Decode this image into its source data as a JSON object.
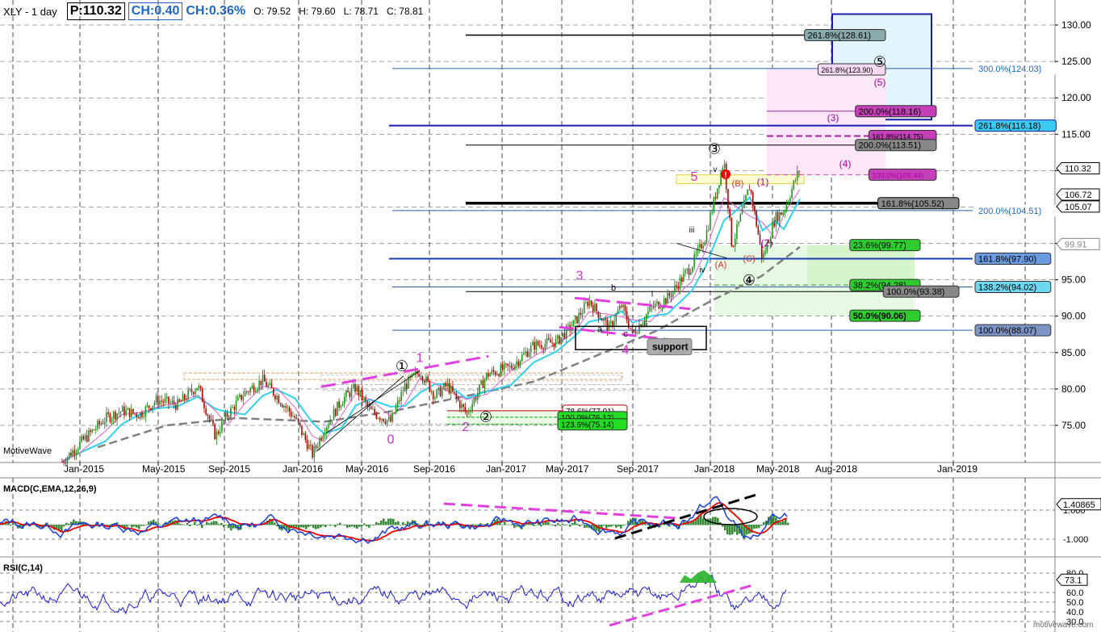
{
  "header": {
    "symbol": "XLY - 1 day",
    "price": "P:110.32",
    "change": "CH:0.40",
    "change_pct": "CH:0.36%",
    "open": "O: 79.52",
    "high": "H: 79.60",
    "low": "L: 78.71",
    "close": "C: 78.81"
  },
  "watermark": "MotiveWave",
  "watermark2": "motivewave.com",
  "chart_data": {
    "type": "candlestick",
    "x_ticks": [
      "Jan-2015",
      "May-2015",
      "Sep-2015",
      "Jan-2016",
      "May-2016",
      "Sep-2016",
      "Jan-2017",
      "May-2017",
      "Sep-2017",
      "Jan-2018",
      "May-2018",
      "Aug-2018",
      "Jan-2019"
    ],
    "y_ticks": [
      75.0,
      80.0,
      85.0,
      90.0,
      95.0,
      100.0,
      105.0,
      110.0,
      115.0,
      120.0,
      125.0,
      130.0
    ],
    "ylim": [
      70.6,
      132
    ],
    "y_tick_labels": [
      "75.00",
      "80.00",
      "85.00",
      "90.00",
      "95.00",
      "100.00",
      "105.00",
      "110.00",
      "115.00",
      "120.00",
      "125.00",
      "130.00"
    ],
    "price_path": [
      [
        "2014-12-01",
        70.0
      ],
      [
        "2015-01-01",
        72.5
      ],
      [
        "2015-02-15",
        76.0
      ],
      [
        "2015-03-15",
        77.0
      ],
      [
        "2015-04-15",
        76.5
      ],
      [
        "2015-05-15",
        78.5
      ],
      [
        "2015-06-20",
        77.8
      ],
      [
        "2015-07-25",
        80.5
      ],
      [
        "2015-08-25",
        73.5
      ],
      [
        "2015-09-15",
        76.5
      ],
      [
        "2015-10-15",
        79.5
      ],
      [
        "2015-11-15",
        81.2
      ],
      [
        "2015-12-10",
        79.0
      ],
      [
        "2016-01-10",
        76.0
      ],
      [
        "2016-02-10",
        71.0
      ],
      [
        "2016-03-01",
        74.5
      ],
      [
        "2016-04-01",
        78.5
      ],
      [
        "2016-04-25",
        80.2
      ],
      [
        "2016-05-20",
        77.0
      ],
      [
        "2016-06-25",
        75.5
      ],
      [
        "2016-07-20",
        80.5
      ],
      [
        "2016-08-15",
        82.5
      ],
      [
        "2016-09-10",
        79.0
      ],
      [
        "2016-10-01",
        80.5
      ],
      [
        "2016-11-04",
        76.6
      ],
      [
        "2016-12-10",
        82.0
      ],
      [
        "2017-01-20",
        83.0
      ],
      [
        "2017-03-01",
        86.0
      ],
      [
        "2017-04-10",
        86.5
      ],
      [
        "2017-05-10",
        89.0
      ],
      [
        "2017-06-05",
        92.2
      ],
      [
        "2017-07-10",
        88.3
      ],
      [
        "2017-08-01",
        91.5
      ],
      [
        "2017-08-20",
        87.5
      ],
      [
        "2017-09-20",
        91.0
      ],
      [
        "2017-10-20",
        92.5
      ],
      [
        "2017-12-01",
        97.0
      ],
      [
        "2017-12-25",
        101.0
      ],
      [
        "2018-01-26",
        111.5
      ],
      [
        "2018-02-09",
        99.5
      ],
      [
        "2018-03-12",
        108.0
      ],
      [
        "2018-04-03",
        97.8
      ],
      [
        "2018-04-25",
        103.5
      ],
      [
        "2018-05-10",
        104.5
      ],
      [
        "2018-06-07",
        110.32
      ]
    ],
    "horizontal_levels": [
      {
        "label": "261.8%(128.61)",
        "value": 128.61
      },
      {
        "label": "261.8%(123.90)",
        "value": 123.9
      },
      {
        "label": "300.0%(124.03)",
        "value": 124.03
      },
      {
        "label": "200.0%(118.16)",
        "value": 118.16
      },
      {
        "label": "261.8%(116.18)",
        "value": 116.18
      },
      {
        "label": "161.8%(114.75)",
        "value": 114.75
      },
      {
        "label": "200.0%(113.51)",
        "value": 113.51
      },
      {
        "label": "100.0%(109.44)",
        "value": 109.44
      },
      {
        "label": "161.8%(105.52)",
        "value": 105.52
      },
      {
        "label": "200.0%(104.51)",
        "value": 104.51
      },
      {
        "label": "23.6%(99.77)",
        "value": 99.77
      },
      {
        "label": "161.8%(97.90)",
        "value": 97.9
      },
      {
        "label": "38.2%(94.28)",
        "value": 94.28
      },
      {
        "label": "138.2%(94.02)",
        "value": 94.02
      },
      {
        "label": "100.0%(93.38)",
        "value": 93.38
      },
      {
        "label": "50.0%(90.06)",
        "value": 90.06
      },
      {
        "label": "100.0%(88.07)",
        "value": 88.07
      },
      {
        "label": "78.6%(77.01)",
        "value": 77.01
      },
      {
        "label": "100.0%(76.12)",
        "value": 76.12
      },
      {
        "label": "123.6%(75.14)",
        "value": 75.14
      }
    ],
    "price_markers": [
      {
        "label": "110.32",
        "value": 110.32
      },
      {
        "label": "106.72",
        "value": 106.72
      },
      {
        "label": "105.07",
        "value": 105.07
      },
      {
        "label": "99.91",
        "value": 99.91
      }
    ],
    "wave_labels": [
      "①",
      "1",
      "0",
      "②",
      "2",
      "3",
      "4",
      "③",
      "5",
      "(A)",
      "(B)",
      "(C)",
      "④",
      "(1)",
      "(2)",
      "(3)",
      "(4)",
      "(5)",
      "⑤",
      "a",
      "b",
      "c",
      "i",
      "ii",
      "iii",
      "iv",
      "v"
    ],
    "annotation": "support",
    "macd": {
      "title": "MACD(C,EMA,12,26,9)",
      "value_label": "1.40865",
      "ticks": [
        "1.000",
        "-1.000"
      ]
    },
    "rsi": {
      "title": "RSI(C,14)",
      "value_label": "73.1",
      "ticks": [
        "80.0",
        "60.0",
        "50.0",
        "40.0",
        "30.0"
      ]
    }
  }
}
